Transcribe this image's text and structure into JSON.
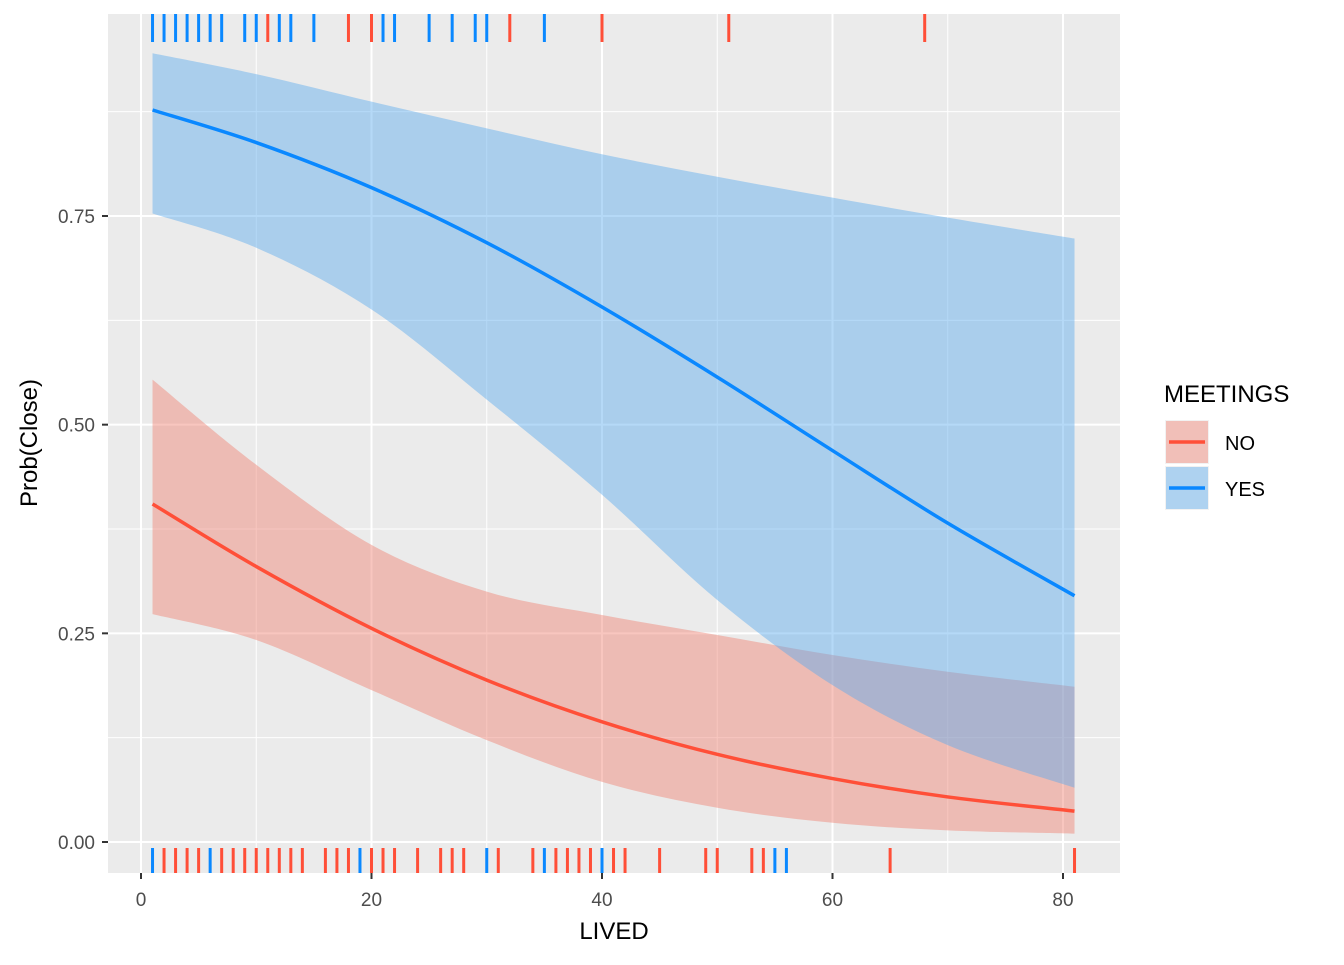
{
  "chart_data": {
    "type": "line",
    "title": "",
    "xlabel": "LIVED",
    "ylabel": "Prob(Close)",
    "xlim": [
      -3,
      84
    ],
    "ylim": [
      -0.04,
      0.99
    ],
    "x_ticks": [
      0,
      20,
      40,
      60,
      80
    ],
    "x_tick_labels": [
      "0",
      "20",
      "40",
      "60",
      "80"
    ],
    "y_ticks": [
      0,
      0.25,
      0.5,
      0.75
    ],
    "y_tick_labels": [
      "0.00",
      "0.25",
      "0.50",
      "0.75"
    ],
    "grid": true,
    "legend": {
      "title": "MEETINGS",
      "placement": "right"
    },
    "x": [
      1,
      10,
      20,
      30,
      40,
      50,
      60,
      70,
      81
    ],
    "series": [
      {
        "name": "NO",
        "color": "#FF4F38",
        "band_color": "#F08070",
        "fit": [
          0.405,
          0.33,
          0.256,
          0.194,
          0.144,
          0.105,
          0.076,
          0.054,
          0.037
        ],
        "lower": [
          0.273,
          0.242,
          0.182,
          0.122,
          0.072,
          0.041,
          0.023,
          0.014,
          0.01
        ],
        "upper": [
          0.554,
          0.452,
          0.356,
          0.3,
          0.272,
          0.248,
          0.224,
          0.204,
          0.186
        ],
        "rug_top": [
          11,
          18,
          20,
          32,
          40,
          51,
          68
        ],
        "rug_bottom": [
          2,
          3,
          4,
          5,
          7,
          8,
          9,
          10,
          11,
          12,
          13,
          14,
          16,
          17,
          18,
          20,
          21,
          22,
          24,
          26,
          27,
          28,
          31,
          34,
          36,
          37,
          38,
          39,
          41,
          42,
          45,
          49,
          50,
          53,
          54,
          65,
          81
        ]
      },
      {
        "name": "YES",
        "color": "#0A88FF",
        "band_color": "#5AAAEE",
        "fit": [
          0.877,
          0.838,
          0.784,
          0.718,
          0.641,
          0.557,
          0.469,
          0.382,
          0.295
        ],
        "lower": [
          0.753,
          0.712,
          0.638,
          0.53,
          0.416,
          0.29,
          0.188,
          0.116,
          0.065
        ],
        "upper": [
          0.945,
          0.92,
          0.887,
          0.855,
          0.824,
          0.797,
          0.772,
          0.748,
          0.723
        ],
        "rug_top": [
          1,
          2,
          3,
          4,
          5,
          6,
          7,
          9,
          10,
          12,
          13,
          15,
          21,
          22,
          25,
          27,
          29,
          30,
          35
        ],
        "rug_bottom": [
          1,
          6,
          19,
          30,
          35,
          40,
          55,
          56
        ]
      }
    ]
  }
}
